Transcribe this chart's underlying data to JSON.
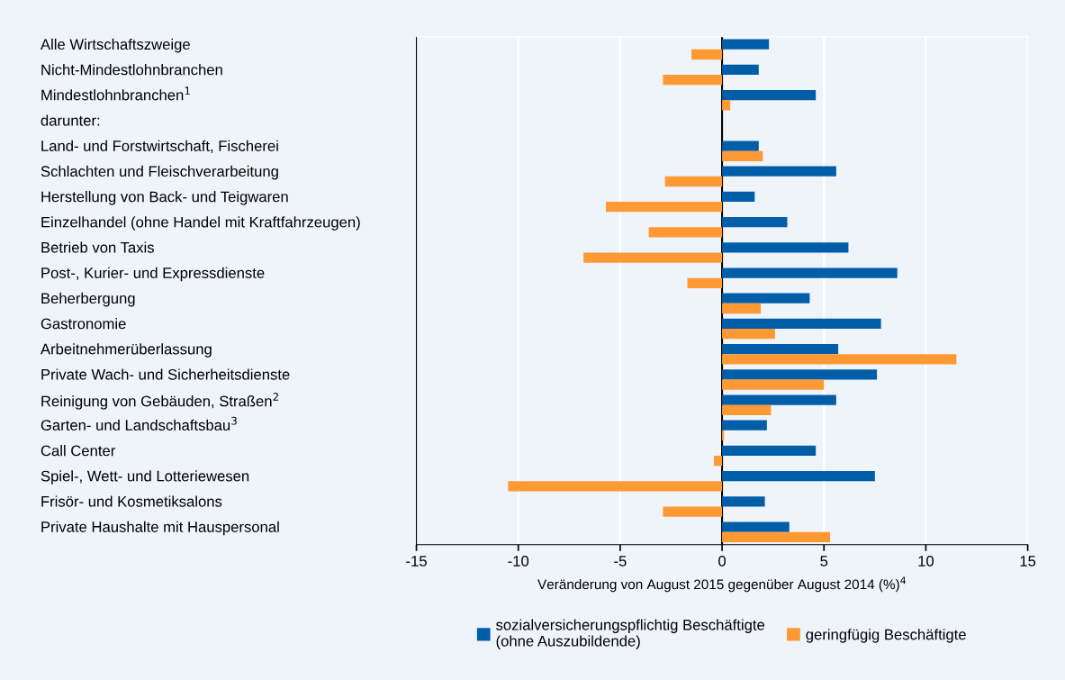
{
  "chart_data": {
    "type": "bar",
    "orientation": "horizontal",
    "categories": [
      "Alle Wirtschaftszweige",
      "Nicht-Mindestlohnbranchen",
      "Mindestlohnbranchen$^{1}$",
      null,
      "Land- und Forstwirtschaft, Fischerei",
      "Schlachten und Fleischverarbeitung",
      "Herstellung von Back- und Teigwaren",
      "Einzelhandel (ohne Handel mit Kraftfahrzeugen)",
      "Betrieb von Taxis",
      "Post-, Kurier- und Expressdienste",
      "Beherbergung",
      "Gastronomie",
      "Arbeitnehmerüberlassung",
      "Private Wach- und Sicherheitsdienste",
      "Reinigung von Gebäuden, Straßen$^{2}$",
      "Garten- und Landschaftsbau$^{3}$",
      "Call Center",
      "Spiel-, Wett- und Lotteriewesen",
      "Frisör- und Kosmetiksalons",
      "Private Haushalte mit Hauspersonal"
    ],
    "series": [
      {
        "name": "sozialversicherungspflichtig Beschäftigte\n(ohne Auszubildende)",
        "color": "#005ea8",
        "values": [
          2.3,
          1.8,
          4.6,
          null,
          1.8,
          5.6,
          1.6,
          3.2,
          6.2,
          8.6,
          4.3,
          7.8,
          5.7,
          7.6,
          5.6,
          2.2,
          4.6,
          7.5,
          2.1,
          3.3
        ]
      },
      {
        "name": "geringfügig Beschäftigte",
        "color": "#ff9933",
        "values": [
          -1.5,
          -2.9,
          0.4,
          null,
          2.0,
          -2.8,
          -5.7,
          -3.6,
          -6.8,
          -1.7,
          1.9,
          2.6,
          11.5,
          5.0,
          2.4,
          0.1,
          -0.4,
          -10.5,
          -2.9,
          5.3
        ]
      }
    ],
    "xlabel": "Veränderung von August 2015 gegenüber August 2014 (%)$^{4}$",
    "xlim": [
      -15,
      15
    ],
    "xticks": [
      -15,
      -10,
      -5,
      0,
      5,
      10,
      15
    ],
    "annotations": [
      "darunter:"
    ],
    "grid": "x",
    "legend": "bottom",
    "ref_lines": [
      {
        "axis": "x",
        "value": 0,
        "color": "#000000"
      }
    ]
  }
}
